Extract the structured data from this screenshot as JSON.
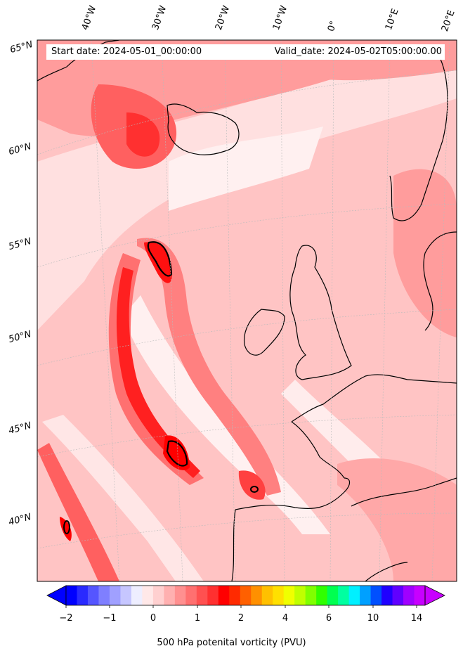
{
  "header": {
    "start_date": "Start date: 2024-05-01_00:00:00",
    "valid_date": "Valid_date: 2024-05-02T05:00:00.00"
  },
  "lon_labels": [
    "40°W",
    "30°W",
    "20°W",
    "10°W",
    "0°",
    "10°E",
    "20°E"
  ],
  "lat_labels": [
    "65°N",
    "60°N",
    "55°N",
    "50°N",
    "45°N",
    "40°N"
  ],
  "colorbar": {
    "ticks": [
      "−2",
      "−1",
      "0",
      "1",
      "2",
      "4",
      "6",
      "10",
      "14"
    ],
    "title": "500 hPa potenital vorticity (PVU)",
    "colors": [
      "#0000ff",
      "#2a2aff",
      "#5555ff",
      "#7f7fff",
      "#a0a0ff",
      "#c6c6ff",
      "#eeeeff",
      "#ffe8e8",
      "#ffd0d0",
      "#ffb0b0",
      "#ff9090",
      "#ff7070",
      "#ff5050",
      "#ff3030",
      "#ff0000",
      "#ff2a00",
      "#ff6000",
      "#ff9000",
      "#ffc000",
      "#ffe000",
      "#f0ff00",
      "#c0ff00",
      "#80ff00",
      "#30ff00",
      "#00ff50",
      "#00ffa0",
      "#00f0ff",
      "#00a0ff",
      "#0050ff",
      "#2000ff",
      "#6000ff",
      "#a000ff",
      "#c800ff"
    ]
  },
  "map": {
    "base_color": "#ffc4c4",
    "strong_color": "#ff1010",
    "medium_color": "#ff7070",
    "light_color": "#ffe8e8"
  }
}
